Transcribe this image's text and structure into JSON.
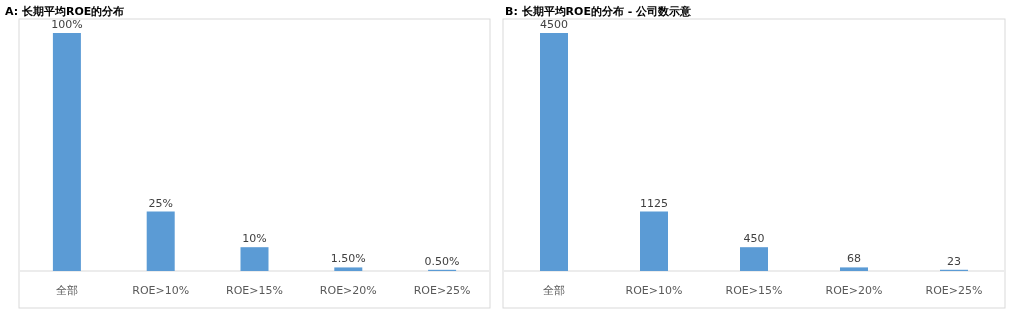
{
  "chart_data": [
    {
      "type": "bar",
      "title": "A:  长期平均ROE的分布",
      "categories": [
        "全部",
        "ROE>10%",
        "ROE>15%",
        "ROE>20%",
        "ROE>25%"
      ],
      "values": [
        100,
        25,
        10,
        1.5,
        0.5
      ],
      "value_labels": [
        "100%",
        "25%",
        "10%",
        "1.50%",
        "0.50%"
      ],
      "color": "#5b9bd5"
    },
    {
      "type": "bar",
      "title": "B: 长期平均ROE的分布 - 公司数示意",
      "categories": [
        "全部",
        "ROE>10%",
        "ROE>15%",
        "ROE>20%",
        "ROE>25%"
      ],
      "values": [
        4500,
        1125,
        450,
        68,
        23
      ],
      "data_labels": true,
      "color": "#5b9bd5"
    }
  ]
}
